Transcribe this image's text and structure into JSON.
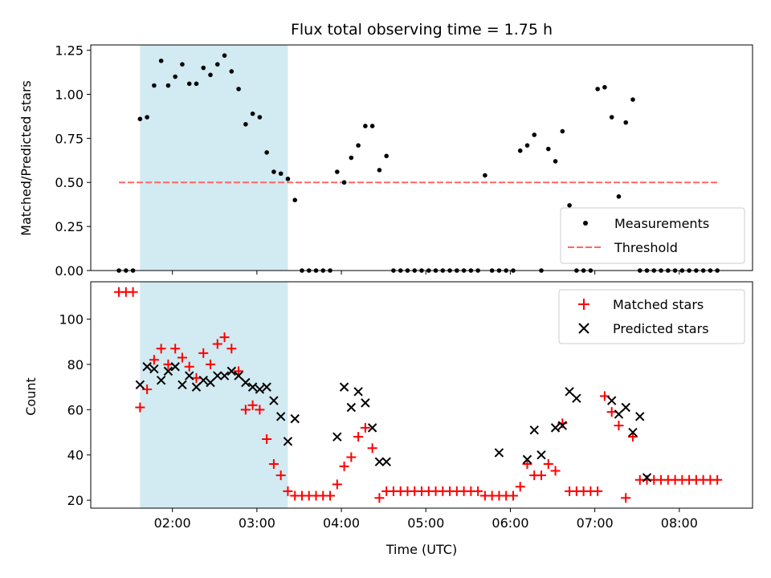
{
  "figure": {
    "title": "Flux total observing time = 1.75 h"
  },
  "chart_data": [
    {
      "type": "scatter",
      "title": "Flux total observing time = 1.75 h",
      "xlabel": "",
      "ylabel": "Matched/Predicted stars",
      "xlim": [
        "01:02",
        "08:52"
      ],
      "ylim": [
        0,
        1.28
      ],
      "yticks": [
        0.0,
        0.25,
        0.5,
        0.75,
        1.0,
        1.25
      ],
      "ytick_labels": [
        "0.00",
        "0.25",
        "0.50",
        "0.75",
        "1.00",
        "1.25"
      ],
      "shaded_interval": {
        "start": "01:37",
        "end": "03:22",
        "color": "#add8e6"
      },
      "legend": {
        "placement": "lower-right",
        "entries": [
          {
            "label": "Measurements",
            "marker": "dot",
            "color": "#000000"
          },
          {
            "label": "Threshold",
            "marker": "dashed-line",
            "color": "#ff6666"
          }
        ]
      },
      "threshold": {
        "value": 0.5,
        "x_start": "01:22",
        "x_end": "08:27"
      },
      "series": [
        {
          "name": "Measurements",
          "x": [
            "01:22",
            "01:27",
            "01:32",
            "01:37",
            "01:42",
            "01:47",
            "01:52",
            "01:57",
            "02:02",
            "02:07",
            "02:12",
            "02:17",
            "02:22",
            "02:27",
            "02:32",
            "02:37",
            "02:42",
            "02:47",
            "02:52",
            "02:57",
            "03:02",
            "03:07",
            "03:12",
            "03:17",
            "03:22",
            "03:27",
            "03:32",
            "03:37",
            "03:42",
            "03:47",
            "03:52",
            "03:57",
            "04:02",
            "04:07",
            "04:12",
            "04:17",
            "04:22",
            "04:27",
            "04:32",
            "04:37",
            "04:42",
            "04:47",
            "04:52",
            "04:57",
            "05:02",
            "05:07",
            "05:12",
            "05:17",
            "05:22",
            "05:27",
            "05:32",
            "05:37",
            "05:42",
            "05:47",
            "05:52",
            "05:57",
            "06:02",
            "06:07",
            "06:12",
            "06:17",
            "06:22",
            "06:27",
            "06:32",
            "06:37",
            "06:42",
            "06:47",
            "06:52",
            "06:57",
            "07:02",
            "07:07",
            "07:12",
            "07:17",
            "07:22",
            "07:27",
            "07:32",
            "07:37",
            "07:42",
            "07:47",
            "07:52",
            "07:57",
            "08:02",
            "08:07",
            "08:12",
            "08:17",
            "08:22",
            "08:27"
          ],
          "y": [
            0,
            0,
            0,
            0.86,
            0.87,
            1.05,
            1.19,
            1.05,
            1.1,
            1.17,
            1.06,
            1.06,
            1.15,
            1.11,
            1.17,
            1.22,
            1.13,
            1.03,
            0.83,
            0.89,
            0.87,
            0.67,
            0.56,
            0.55,
            0.52,
            0.4,
            0,
            0,
            0,
            0,
            0,
            0.56,
            0.5,
            0.64,
            0.71,
            0.82,
            0.82,
            0.57,
            0.65,
            0,
            0,
            0,
            0,
            0,
            0,
            0,
            0,
            0,
            0,
            0,
            0,
            0,
            0.54,
            0,
            0,
            0,
            0,
            0.68,
            0.71,
            0.77,
            0,
            0.69,
            0.62,
            0.79,
            0.37,
            0,
            0,
            0,
            1.03,
            1.04,
            0.87,
            0.42,
            0.84,
            0.97,
            0,
            0,
            0,
            0,
            0,
            0,
            0,
            0,
            0,
            0,
            0,
            0
          ]
        }
      ]
    },
    {
      "type": "scatter",
      "xlabel": "Time (UTC)",
      "ylabel": "Count",
      "xlim": [
        "01:02",
        "08:52"
      ],
      "ylim": [
        16.5,
        116.5
      ],
      "yticks": [
        20,
        40,
        60,
        80,
        100
      ],
      "xticks": [
        "02:00",
        "03:00",
        "04:00",
        "05:00",
        "06:00",
        "07:00",
        "08:00"
      ],
      "shaded_interval": {
        "start": "01:37",
        "end": "03:22",
        "color": "#add8e6"
      },
      "legend": {
        "placement": "upper-right",
        "entries": [
          {
            "label": "Matched stars",
            "marker": "plus",
            "color": "#ff0000"
          },
          {
            "label": "Predicted stars",
            "marker": "x",
            "color": "#000000"
          }
        ]
      },
      "series": [
        {
          "name": "Matched stars",
          "x": [
            "01:22",
            "01:27",
            "01:32",
            "01:37",
            "01:42",
            "01:47",
            "01:52",
            "01:57",
            "02:02",
            "02:07",
            "02:12",
            "02:17",
            "02:22",
            "02:27",
            "02:32",
            "02:37",
            "02:42",
            "02:47",
            "02:52",
            "02:57",
            "03:02",
            "03:07",
            "03:12",
            "03:17",
            "03:22",
            "03:27",
            "03:32",
            "03:37",
            "03:42",
            "03:47",
            "03:52",
            "03:57",
            "04:02",
            "04:07",
            "04:12",
            "04:17",
            "04:22",
            "04:27",
            "04:32",
            "04:37",
            "04:42",
            "04:47",
            "04:52",
            "04:57",
            "05:02",
            "05:07",
            "05:12",
            "05:17",
            "05:22",
            "05:27",
            "05:32",
            "05:37",
            "05:42",
            "05:47",
            "05:52",
            "05:57",
            "06:02",
            "06:07",
            "06:12",
            "06:17",
            "06:22",
            "06:27",
            "06:32",
            "06:37",
            "06:42",
            "06:47",
            "06:52",
            "06:57",
            "07:02",
            "07:07",
            "07:12",
            "07:17",
            "07:22",
            "07:27",
            "07:32",
            "07:37",
            "07:42",
            "07:47",
            "07:52",
            "07:57",
            "08:02",
            "08:07",
            "08:12",
            "08:17",
            "08:22",
            "08:27"
          ],
          "y": [
            112,
            112,
            112,
            61,
            69,
            82,
            87,
            80,
            87,
            83,
            79,
            74,
            85,
            80,
            89,
            92,
            87,
            77,
            60,
            62,
            60,
            47,
            36,
            31,
            24,
            22,
            22,
            22,
            22,
            22,
            22,
            27,
            35,
            39,
            48,
            52,
            43,
            21,
            24,
            24,
            24,
            24,
            24,
            24,
            24,
            24,
            24,
            24,
            24,
            24,
            24,
            24,
            22,
            22,
            22,
            22,
            22,
            26,
            36,
            31,
            31,
            36,
            33,
            54,
            24,
            24,
            24,
            24,
            24,
            66,
            59,
            53,
            21,
            48,
            29,
            29,
            29,
            29,
            29,
            29,
            29,
            29,
            29,
            29,
            29,
            29
          ]
        },
        {
          "name": "Predicted stars",
          "x": [
            "01:37",
            "01:42",
            "01:47",
            "01:52",
            "01:57",
            "02:02",
            "02:07",
            "02:12",
            "02:17",
            "02:22",
            "02:27",
            "02:32",
            "02:37",
            "02:42",
            "02:47",
            "02:52",
            "02:57",
            "03:02",
            "03:07",
            "03:12",
            "03:17",
            "03:22",
            "03:27",
            "03:57",
            "04:02",
            "04:07",
            "04:12",
            "04:17",
            "04:22",
            "04:27",
            "04:32",
            "05:52",
            "06:12",
            "06:17",
            "06:22",
            "06:32",
            "06:37",
            "06:42",
            "06:47",
            "07:12",
            "07:17",
            "07:22",
            "07:27",
            "07:32",
            "07:37"
          ],
          "y": [
            71,
            79,
            78,
            73,
            77,
            79,
            71,
            75,
            70,
            73,
            72,
            75,
            75,
            77,
            75,
            72,
            70,
            69,
            70,
            64,
            57,
            46,
            56,
            48,
            70,
            61,
            68,
            63,
            52,
            37,
            37,
            41,
            38,
            51,
            40,
            52,
            53,
            68,
            65,
            64,
            58,
            61,
            50,
            57,
            30
          ]
        }
      ]
    }
  ]
}
